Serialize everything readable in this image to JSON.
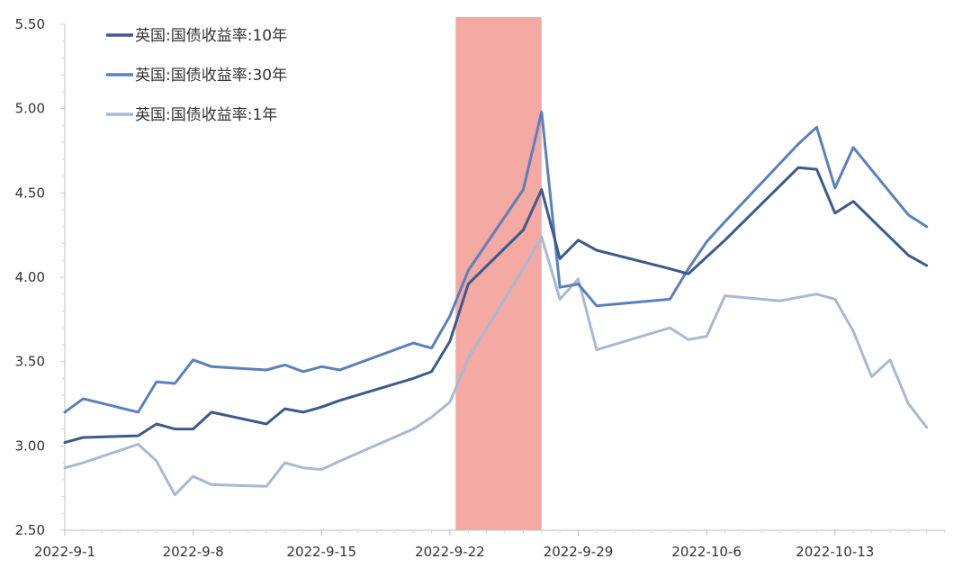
{
  "chart_data": {
    "type": "line",
    "title": "",
    "xlabel": "",
    "ylabel": "",
    "ylim": [
      2.5,
      5.5
    ],
    "yticks": [
      "2.50",
      "3.00",
      "3.50",
      "4.00",
      "4.50",
      "5.00",
      "5.50"
    ],
    "xticks": [
      "2022-9-1",
      "2022-9-8",
      "2022-9-15",
      "2022-9-22",
      "2022-9-29",
      "2022-10-6",
      "2022-10-13"
    ],
    "x_range": [
      "2022-09-01",
      "2022-10-19"
    ],
    "legend_position": "top-left",
    "grid": false,
    "highlight": {
      "from": "2022-09-23",
      "to": "2022-09-27",
      "color": "#f4a9a3"
    },
    "series": [
      {
        "name": "英国:国债收益率:10年",
        "color": "#3d5a8c",
        "points": [
          [
            "2022-09-01",
            3.02
          ],
          [
            "2022-09-02",
            3.05
          ],
          [
            "2022-09-05",
            3.06
          ],
          [
            "2022-09-06",
            3.13
          ],
          [
            "2022-09-07",
            3.1
          ],
          [
            "2022-09-08",
            3.1
          ],
          [
            "2022-09-09",
            3.2
          ],
          [
            "2022-09-12",
            3.13
          ],
          [
            "2022-09-13",
            3.22
          ],
          [
            "2022-09-14",
            3.2
          ],
          [
            "2022-09-15",
            3.23
          ],
          [
            "2022-09-16",
            3.27
          ],
          [
            "2022-09-20",
            3.4
          ],
          [
            "2022-09-21",
            3.44
          ],
          [
            "2022-09-22",
            3.62
          ],
          [
            "2022-09-23",
            3.96
          ],
          [
            "2022-09-26",
            4.28
          ],
          [
            "2022-09-27",
            4.52
          ],
          [
            "2022-09-28",
            4.11
          ],
          [
            "2022-09-29",
            4.22
          ],
          [
            "2022-09-30",
            4.16
          ],
          [
            "2022-10-04",
            4.05
          ],
          [
            "2022-10-05",
            4.02
          ],
          [
            "2022-10-06",
            4.12
          ],
          [
            "2022-10-07",
            4.22
          ],
          [
            "2022-10-11",
            4.65
          ],
          [
            "2022-10-12",
            4.64
          ],
          [
            "2022-10-13",
            4.38
          ],
          [
            "2022-10-14",
            4.45
          ],
          [
            "2022-10-17",
            4.13
          ],
          [
            "2022-10-18",
            4.07
          ]
        ]
      },
      {
        "name": "英国:国债收益率:30年",
        "color": "#5b80bc",
        "points": [
          [
            "2022-09-01",
            3.2
          ],
          [
            "2022-09-02",
            3.28
          ],
          [
            "2022-09-05",
            3.2
          ],
          [
            "2022-09-06",
            3.38
          ],
          [
            "2022-09-07",
            3.37
          ],
          [
            "2022-09-08",
            3.51
          ],
          [
            "2022-09-09",
            3.47
          ],
          [
            "2022-09-12",
            3.45
          ],
          [
            "2022-09-13",
            3.48
          ],
          [
            "2022-09-14",
            3.44
          ],
          [
            "2022-09-15",
            3.47
          ],
          [
            "2022-09-16",
            3.45
          ],
          [
            "2022-09-20",
            3.61
          ],
          [
            "2022-09-21",
            3.58
          ],
          [
            "2022-09-22",
            3.77
          ],
          [
            "2022-09-23",
            4.04
          ],
          [
            "2022-09-26",
            4.52
          ],
          [
            "2022-09-27",
            4.98
          ],
          [
            "2022-09-28",
            3.94
          ],
          [
            "2022-09-29",
            3.96
          ],
          [
            "2022-09-30",
            3.83
          ],
          [
            "2022-10-04",
            3.87
          ],
          [
            "2022-10-05",
            4.05
          ],
          [
            "2022-10-06",
            4.21
          ],
          [
            "2022-10-07",
            4.33
          ],
          [
            "2022-10-11",
            4.79
          ],
          [
            "2022-10-12",
            4.89
          ],
          [
            "2022-10-13",
            4.53
          ],
          [
            "2022-10-14",
            4.77
          ],
          [
            "2022-10-17",
            4.37
          ],
          [
            "2022-10-18",
            4.3
          ]
        ]
      },
      {
        "name": "英国:国债收益率:1年",
        "color": "#a9b8d3",
        "points": [
          [
            "2022-09-01",
            2.87
          ],
          [
            "2022-09-02",
            2.9
          ],
          [
            "2022-09-05",
            3.01
          ],
          [
            "2022-09-06",
            2.91
          ],
          [
            "2022-09-07",
            2.71
          ],
          [
            "2022-09-08",
            2.82
          ],
          [
            "2022-09-09",
            2.77
          ],
          [
            "2022-09-12",
            2.76
          ],
          [
            "2022-09-13",
            2.9
          ],
          [
            "2022-09-14",
            2.87
          ],
          [
            "2022-09-15",
            2.86
          ],
          [
            "2022-09-16",
            2.91
          ],
          [
            "2022-09-20",
            3.1
          ],
          [
            "2022-09-21",
            3.17
          ],
          [
            "2022-09-22",
            3.26
          ],
          [
            "2022-09-23",
            3.52
          ],
          [
            "2022-09-26",
            4.05
          ],
          [
            "2022-09-27",
            4.24
          ],
          [
            "2022-09-28",
            3.87
          ],
          [
            "2022-09-29",
            3.99
          ],
          [
            "2022-09-30",
            3.57
          ],
          [
            "2022-10-04",
            3.7
          ],
          [
            "2022-10-05",
            3.63
          ],
          [
            "2022-10-06",
            3.65
          ],
          [
            "2022-10-07",
            3.89
          ],
          [
            "2022-10-10",
            3.86
          ],
          [
            "2022-10-12",
            3.9
          ],
          [
            "2022-10-13",
            3.87
          ],
          [
            "2022-10-14",
            3.68
          ],
          [
            "2022-10-15",
            3.41
          ],
          [
            "2022-10-16",
            3.51
          ],
          [
            "2022-10-17",
            3.25
          ],
          [
            "2022-10-18",
            3.11
          ]
        ]
      }
    ]
  }
}
